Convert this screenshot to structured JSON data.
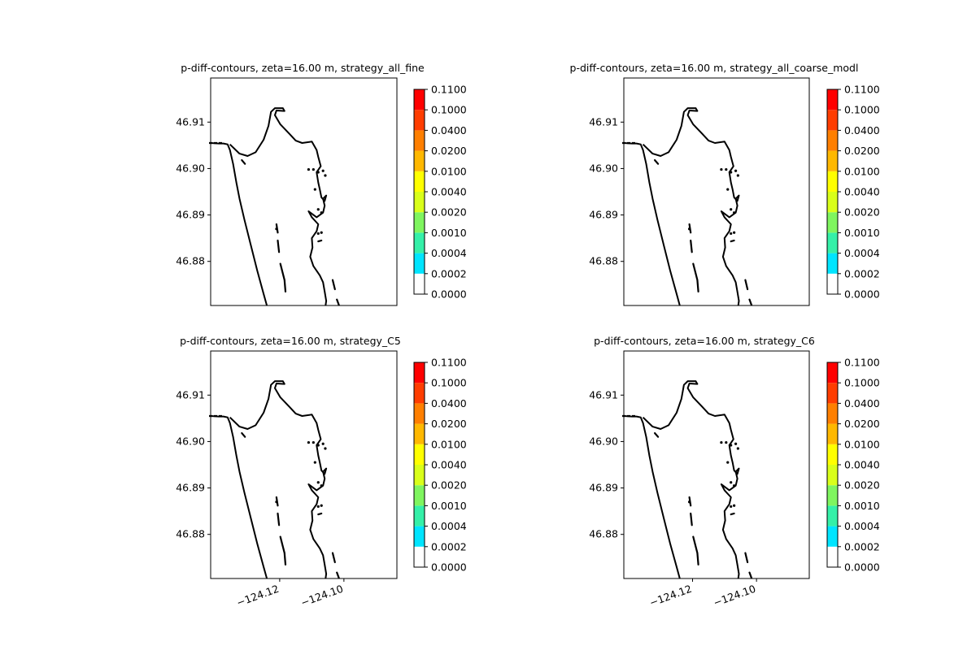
{
  "chart_data": [
    {
      "type": "contour",
      "title": "p-diff-contours, zeta=16.00 m, strategy_all_fine",
      "xlim": [
        -124.1415,
        -124.0835
      ],
      "ylim": [
        46.8705,
        46.9195
      ],
      "xticks": [
        -124.12,
        -124.1
      ],
      "xtick_labels": [
        "",
        ""
      ],
      "yticks": [
        46.88,
        46.89,
        46.9,
        46.91
      ],
      "ytick_labels": [
        "46.88",
        "46.89",
        "46.90",
        "46.91"
      ],
      "xlabel": "",
      "ylabel": "",
      "contour_values": [],
      "colorbar": {
        "levels": [
          0.0,
          0.0002,
          0.0004,
          0.001,
          0.002,
          0.004,
          0.01,
          0.02,
          0.04,
          0.1,
          0.11
        ],
        "tick_labels": [
          "0.0000",
          "0.0002",
          "0.0004",
          "0.0010",
          "0.0020",
          "0.0040",
          "0.0100",
          "0.0200",
          "0.0400",
          "0.1000",
          "0.1100"
        ]
      }
    },
    {
      "type": "contour",
      "title": "p-diff-contours, zeta=16.00 m, strategy_all_coarse_modl",
      "xlim": [
        -124.1415,
        -124.0835
      ],
      "ylim": [
        46.8705,
        46.9195
      ],
      "xticks": [
        -124.12,
        -124.1
      ],
      "xtick_labels": [
        "",
        ""
      ],
      "yticks": [
        46.88,
        46.89,
        46.9,
        46.91
      ],
      "ytick_labels": [
        "46.88",
        "46.89",
        "46.90",
        "46.91"
      ],
      "xlabel": "",
      "ylabel": "",
      "contour_values": [],
      "colorbar": {
        "levels": [
          0.0,
          0.0002,
          0.0004,
          0.001,
          0.002,
          0.004,
          0.01,
          0.02,
          0.04,
          0.1,
          0.11
        ],
        "tick_labels": [
          "0.0000",
          "0.0002",
          "0.0004",
          "0.0010",
          "0.0020",
          "0.0040",
          "0.0100",
          "0.0200",
          "0.0400",
          "0.1000",
          "0.1100"
        ]
      }
    },
    {
      "type": "contour",
      "title": "p-diff-contours, zeta=16.00 m, strategy_C5",
      "xlim": [
        -124.1415,
        -124.0835
      ],
      "ylim": [
        46.8705,
        46.9195
      ],
      "xticks": [
        -124.12,
        -124.1
      ],
      "xtick_labels": [
        "−124.12",
        "−124.10"
      ],
      "yticks": [
        46.88,
        46.89,
        46.9,
        46.91
      ],
      "ytick_labels": [
        "46.88",
        "46.89",
        "46.90",
        "46.91"
      ],
      "xlabel": "",
      "ylabel": "",
      "contour_values": [],
      "colorbar": {
        "levels": [
          0.0,
          0.0002,
          0.0004,
          0.001,
          0.002,
          0.004,
          0.01,
          0.02,
          0.04,
          0.1,
          0.11
        ],
        "tick_labels": [
          "0.0000",
          "0.0002",
          "0.0004",
          "0.0010",
          "0.0020",
          "0.0040",
          "0.0100",
          "0.0200",
          "0.0400",
          "0.1000",
          "0.1100"
        ]
      }
    },
    {
      "type": "contour",
      "title": "p-diff-contours, zeta=16.00 m, strategy_C6",
      "xlim": [
        -124.1415,
        -124.0835
      ],
      "ylim": [
        46.8705,
        46.9195
      ],
      "xticks": [
        -124.12,
        -124.1
      ],
      "xtick_labels": [
        "−124.12",
        "−124.10"
      ],
      "yticks": [
        46.88,
        46.89,
        46.9,
        46.91
      ],
      "ytick_labels": [
        "46.88",
        "46.89",
        "46.90",
        "46.91"
      ],
      "xlabel": "",
      "ylabel": "",
      "contour_values": [],
      "colorbar": {
        "levels": [
          0.0,
          0.0002,
          0.0004,
          0.001,
          0.002,
          0.004,
          0.01,
          0.02,
          0.04,
          0.1,
          0.11
        ],
        "tick_labels": [
          "0.0000",
          "0.0002",
          "0.0004",
          "0.0010",
          "0.0020",
          "0.0040",
          "0.0100",
          "0.0200",
          "0.0400",
          "0.1000",
          "0.1100"
        ]
      }
    }
  ],
  "colorbar_colors": [
    "#ffffff",
    "#00e5ff",
    "#35f0a8",
    "#7ff55f",
    "#d9ff1a",
    "#ffff00",
    "#ffb800",
    "#ff7f00",
    "#ff3d00",
    "#ff0000"
  ],
  "coastline": {
    "color": "#000000",
    "outer_coast": [
      [
        -124.1415,
        46.9055
      ],
      [
        -124.139,
        46.9054
      ],
      [
        -124.1375,
        46.9054
      ],
      [
        -124.1362,
        46.9052
      ],
      [
        -124.1355,
        46.904
      ],
      [
        -124.1345,
        46.901
      ],
      [
        -124.1335,
        46.897
      ],
      [
        -124.1325,
        46.8935
      ],
      [
        -124.131,
        46.889
      ],
      [
        -124.129,
        46.8835
      ],
      [
        -124.127,
        46.878
      ],
      [
        -124.125,
        46.873
      ],
      [
        -124.124,
        46.8705
      ]
    ],
    "bay_shore": [
      [
        -124.1355,
        46.9052
      ],
      [
        -124.1325,
        46.9032
      ],
      [
        -124.13,
        46.9027
      ],
      [
        -124.1275,
        46.9035
      ],
      [
        -124.125,
        46.9062
      ],
      [
        -124.1235,
        46.9092
      ],
      [
        -124.1227,
        46.9122
      ],
      [
        -124.1215,
        46.913
      ],
      [
        -124.119,
        46.913
      ],
      [
        -124.1185,
        46.9124
      ],
      [
        -124.121,
        46.9125
      ],
      [
        -124.1215,
        46.9115
      ],
      [
        -124.1198,
        46.9095
      ],
      [
        -124.117,
        46.9075
      ],
      [
        -124.115,
        46.906
      ],
      [
        -124.113,
        46.9055
      ],
      [
        -124.11,
        46.9058
      ],
      [
        -124.1085,
        46.904
      ],
      [
        -124.108,
        46.9025
      ],
      [
        -124.1072,
        46.9005
      ],
      [
        -124.1085,
        46.8992
      ],
      [
        -124.108,
        46.897
      ],
      [
        -124.1075,
        46.8955
      ],
      [
        -124.107,
        46.8938
      ],
      [
        -124.106,
        46.893
      ],
      [
        -124.1055,
        46.8942
      ],
      [
        -124.1065,
        46.8935
      ],
      [
        -124.106,
        46.892
      ],
      [
        -124.1065,
        46.8905
      ],
      [
        -124.1085,
        46.8895
      ],
      [
        -124.111,
        46.8908
      ],
      [
        -124.11,
        46.8895
      ],
      [
        -124.108,
        46.888
      ],
      [
        -124.1085,
        46.8865
      ],
      [
        -124.11,
        46.885
      ],
      [
        -124.1098,
        46.883
      ],
      [
        -124.1105,
        46.881
      ],
      [
        -124.1095,
        46.879
      ],
      [
        -124.1075,
        46.877
      ],
      [
        -124.1065,
        46.8755
      ],
      [
        -124.106,
        46.8735
      ],
      [
        -124.1055,
        46.8715
      ],
      [
        -124.1057,
        46.8705
      ]
    ],
    "island_strips": [
      [
        [
          -124.121,
          46.888
        ],
        [
          -124.1206,
          46.8862
        ]
      ],
      [
        [
          -124.1206,
          46.8845
        ],
        [
          -124.1202,
          46.882
        ]
      ],
      [
        [
          -124.1198,
          46.8795
        ],
        [
          -124.1185,
          46.876
        ],
        [
          -124.1182,
          46.8735
        ]
      ],
      [
        [
          -124.1035,
          46.876
        ],
        [
          -124.1028,
          46.874
        ]
      ],
      [
        [
          -124.1022,
          46.8718
        ],
        [
          -124.1015,
          46.8705
        ]
      ],
      [
        [
          -124.1318,
          46.9018
        ],
        [
          -124.1308,
          46.901
        ]
      ],
      [
        [
          -124.108,
          46.8843
        ],
        [
          -124.107,
          46.8845
        ]
      ]
    ],
    "island_dots": [
      [
        -124.111,
        46.8998
      ],
      [
        -124.1095,
        46.8998
      ],
      [
        -124.108,
        46.8992
      ],
      [
        -124.1065,
        46.8995
      ],
      [
        -124.1058,
        46.8985
      ],
      [
        -124.109,
        46.8955
      ],
      [
        -124.108,
        46.8912
      ],
      [
        -124.107,
        46.8905
      ],
      [
        -124.108,
        46.886
      ],
      [
        -124.107,
        46.8862
      ],
      [
        -124.121,
        46.887
      ]
    ]
  }
}
